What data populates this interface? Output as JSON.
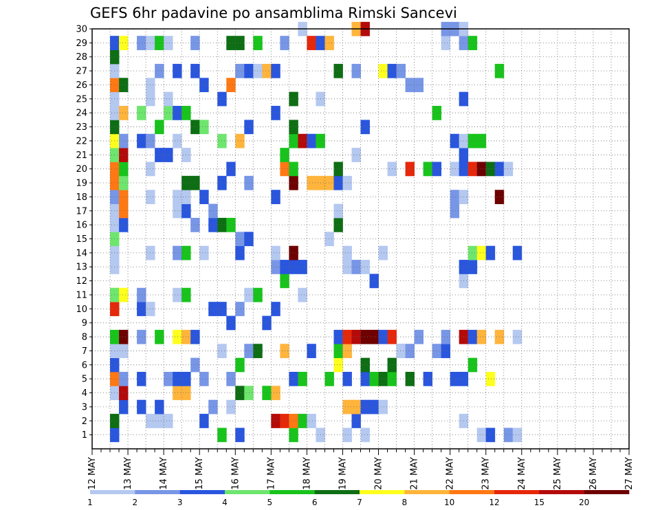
{
  "chart_data": {
    "type": "heatmap",
    "title": "GEFS 6hr padavine po ansamblima Rimski Sancevi",
    "xlabel": "",
    "ylabel": "",
    "x_start": "12 MAY",
    "x_end": "27 MAY",
    "x_step_hours": 6,
    "x_tick_labels": [
      "12 MAY",
      "13 MAY",
      "14 MAY",
      "15 MAY",
      "16 MAY",
      "17 MAY",
      "18 MAY",
      "19 MAY",
      "20 MAY",
      "21 MAY",
      "22 MAY",
      "23 MAY",
      "24 MAY",
      "25 MAY",
      "26 MAY",
      "27 MAY"
    ],
    "y_tick_labels": [
      "1",
      "2",
      "3",
      "4",
      "5",
      "6",
      "7",
      "8",
      "9",
      "10",
      "11",
      "12",
      "13",
      "14",
      "15",
      "16",
      "17",
      "18",
      "19",
      "20",
      "21",
      "22",
      "23",
      "24",
      "25",
      "26",
      "27",
      "28",
      "29",
      "30"
    ],
    "ylim": [
      0,
      30
    ],
    "grid": "dotted",
    "colorbar": {
      "tick_labels": [
        "1",
        "2",
        "3",
        "4",
        "5",
        "6",
        "7",
        "8",
        "10",
        "12",
        "15",
        "20"
      ],
      "colors": [
        "#b4c8f0",
        "#7896e6",
        "#2a56de",
        "#6ee66e",
        "#18c41c",
        "#0e6e14",
        "#ffff1e",
        "#ffb43c",
        "#ff7814",
        "#e6280a",
        "#b40a0a",
        "#6e0000"
      ]
    },
    "cells": [
      [
        12.5,
        1,
        3
      ],
      [
        12.5,
        2,
        6
      ],
      [
        12.5,
        4,
        1
      ],
      [
        12.5,
        5,
        9
      ],
      [
        12.5,
        6,
        3
      ],
      [
        12.5,
        7,
        1
      ],
      [
        12.5,
        8,
        5
      ],
      [
        12.5,
        10,
        4
      ],
      [
        12.5,
        10,
        10
      ],
      [
        12.5,
        11,
        7
      ],
      [
        12.5,
        11,
        4
      ],
      [
        12.5,
        13,
        1
      ],
      [
        12.5,
        14,
        1
      ],
      [
        12.5,
        15,
        4
      ],
      [
        12.5,
        16,
        1
      ],
      [
        12.5,
        17,
        1
      ],
      [
        12.5,
        18,
        2
      ],
      [
        12.5,
        19,
        9
      ],
      [
        12.5,
        20,
        9
      ],
      [
        12.5,
        21,
        4
      ],
      [
        12.5,
        22,
        7
      ],
      [
        12.5,
        23,
        6
      ],
      [
        12.5,
        24,
        1
      ],
      [
        12.5,
        25,
        1
      ],
      [
        12.5,
        26,
        9
      ],
      [
        12.5,
        27,
        1
      ],
      [
        12.5,
        28,
        6
      ],
      [
        12.5,
        29,
        3
      ],
      [
        12.75,
        3,
        3
      ],
      [
        12.75,
        4,
        11
      ],
      [
        12.75,
        5,
        2
      ],
      [
        12.75,
        7,
        1
      ],
      [
        12.75,
        8,
        12
      ],
      [
        12.75,
        11,
        7
      ],
      [
        12.75,
        16,
        3
      ],
      [
        12.75,
        17,
        9
      ],
      [
        12.75,
        18,
        9
      ],
      [
        12.75,
        19,
        4
      ],
      [
        12.75,
        20,
        5
      ],
      [
        12.75,
        21,
        11
      ],
      [
        12.75,
        22,
        2
      ],
      [
        12.75,
        24,
        8
      ],
      [
        12.75,
        26,
        6
      ],
      [
        12.75,
        29,
        7
      ],
      [
        13.25,
        5,
        3
      ],
      [
        13.25,
        8,
        2
      ],
      [
        13.25,
        10,
        3
      ],
      [
        13.25,
        11,
        2
      ],
      [
        13.25,
        24,
        4
      ],
      [
        13.25,
        22,
        3
      ],
      [
        13.25,
        29,
        2
      ],
      [
        13.25,
        3,
        3
      ],
      [
        13.5,
        2,
        1
      ],
      [
        13.5,
        10,
        1
      ],
      [
        13.5,
        14,
        1
      ],
      [
        13.5,
        18,
        1
      ],
      [
        13.5,
        20,
        1
      ],
      [
        13.5,
        22,
        2
      ],
      [
        13.5,
        25,
        1
      ],
      [
        13.5,
        26,
        1
      ],
      [
        13.5,
        29,
        1
      ],
      [
        13.75,
        2,
        1
      ],
      [
        13.75,
        3,
        3
      ],
      [
        13.75,
        8,
        5
      ],
      [
        13.75,
        23,
        5
      ],
      [
        13.75,
        27,
        2
      ],
      [
        13.75,
        29,
        5
      ],
      [
        13.75,
        21,
        3
      ],
      [
        14.0,
        2,
        1
      ],
      [
        14.0,
        5,
        2
      ],
      [
        14.0,
        21,
        3
      ],
      [
        14.0,
        24,
        4
      ],
      [
        14.0,
        25,
        1
      ],
      [
        14.0,
        29,
        1
      ],
      [
        14.25,
        4,
        8
      ],
      [
        14.25,
        5,
        3
      ],
      [
        14.25,
        8,
        7
      ],
      [
        14.25,
        11,
        1
      ],
      [
        14.25,
        14,
        2
      ],
      [
        14.25,
        17,
        1
      ],
      [
        14.25,
        18,
        1
      ],
      [
        14.25,
        22,
        1
      ],
      [
        14.25,
        24,
        3
      ],
      [
        14.25,
        27,
        3
      ],
      [
        14.5,
        4,
        8
      ],
      [
        14.5,
        5,
        3
      ],
      [
        14.5,
        8,
        8
      ],
      [
        14.5,
        11,
        5
      ],
      [
        14.5,
        14,
        5
      ],
      [
        14.5,
        17,
        3
      ],
      [
        14.5,
        18,
        1
      ],
      [
        14.5,
        19,
        6
      ],
      [
        14.5,
        21,
        1
      ],
      [
        14.5,
        24,
        5
      ],
      [
        14.75,
        6,
        2
      ],
      [
        14.75,
        8,
        3
      ],
      [
        14.75,
        16,
        2
      ],
      [
        14.75,
        19,
        6
      ],
      [
        14.75,
        23,
        6
      ],
      [
        14.75,
        27,
        3
      ],
      [
        14.75,
        29,
        2
      ],
      [
        15.0,
        2,
        3
      ],
      [
        15.0,
        5,
        2
      ],
      [
        15.0,
        14,
        1
      ],
      [
        15.0,
        18,
        3
      ],
      [
        15.0,
        23,
        4
      ],
      [
        15.0,
        26,
        3
      ],
      [
        15.25,
        3,
        2
      ],
      [
        15.25,
        10,
        3
      ],
      [
        15.25,
        16,
        3
      ],
      [
        15.25,
        17,
        2
      ],
      [
        15.5,
        1,
        5
      ],
      [
        15.5,
        7,
        1
      ],
      [
        15.5,
        10,
        3
      ],
      [
        15.5,
        16,
        6
      ],
      [
        15.5,
        19,
        3
      ],
      [
        15.5,
        22,
        4
      ],
      [
        15.5,
        25,
        3
      ],
      [
        15.75,
        3,
        1
      ],
      [
        15.75,
        5,
        2
      ],
      [
        15.75,
        9,
        3
      ],
      [
        15.75,
        16,
        5
      ],
      [
        15.75,
        20,
        3
      ],
      [
        15.75,
        26,
        9
      ],
      [
        15.75,
        29,
        6
      ],
      [
        16.0,
        1,
        3
      ],
      [
        16.0,
        4,
        6
      ],
      [
        16.0,
        6,
        5
      ],
      [
        16.0,
        10,
        2
      ],
      [
        16.0,
        14,
        3
      ],
      [
        16.0,
        15,
        2
      ],
      [
        16.0,
        22,
        8
      ],
      [
        16.0,
        27,
        2
      ],
      [
        16.0,
        29,
        6
      ],
      [
        16.25,
        4,
        4
      ],
      [
        16.25,
        7,
        2
      ],
      [
        16.25,
        11,
        1
      ],
      [
        16.25,
        15,
        3
      ],
      [
        16.25,
        19,
        2
      ],
      [
        16.25,
        23,
        3
      ],
      [
        16.25,
        27,
        3
      ],
      [
        16.5,
        7,
        6
      ],
      [
        16.5,
        11,
        5
      ],
      [
        16.5,
        27,
        1
      ],
      [
        16.5,
        29,
        5
      ],
      [
        16.75,
        4,
        5
      ],
      [
        16.75,
        9,
        3
      ],
      [
        16.75,
        27,
        8
      ],
      [
        17.0,
        2,
        11
      ],
      [
        17.0,
        4,
        8
      ],
      [
        17.0,
        10,
        3
      ],
      [
        17.0,
        13,
        2
      ],
      [
        17.0,
        14,
        1
      ],
      [
        17.0,
        18,
        3
      ],
      [
        17.0,
        24,
        3
      ],
      [
        17.0,
        27,
        3
      ],
      [
        17.25,
        2,
        10
      ],
      [
        17.25,
        7,
        8
      ],
      [
        17.25,
        12,
        5
      ],
      [
        17.25,
        13,
        3
      ],
      [
        17.25,
        20,
        9
      ],
      [
        17.25,
        21,
        5
      ],
      [
        17.25,
        29,
        2
      ],
      [
        17.5,
        1,
        5
      ],
      [
        17.5,
        2,
        9
      ],
      [
        17.5,
        5,
        3
      ],
      [
        17.5,
        13,
        3
      ],
      [
        17.5,
        14,
        12
      ],
      [
        17.5,
        19,
        12
      ],
      [
        17.5,
        20,
        5
      ],
      [
        17.5,
        22,
        5
      ],
      [
        17.5,
        23,
        6
      ],
      [
        17.5,
        25,
        6
      ],
      [
        17.75,
        2,
        5
      ],
      [
        17.75,
        5,
        5
      ],
      [
        17.75,
        11,
        1
      ],
      [
        17.75,
        13,
        3
      ],
      [
        17.75,
        22,
        11
      ],
      [
        17.75,
        30,
        1
      ],
      [
        18.0,
        2,
        1
      ],
      [
        18.0,
        7,
        3
      ],
      [
        18.0,
        19,
        8
      ],
      [
        18.0,
        22,
        3
      ],
      [
        18.0,
        29,
        10
      ],
      [
        18.25,
        1,
        1
      ],
      [
        18.25,
        19,
        8
      ],
      [
        18.25,
        22,
        5
      ],
      [
        18.25,
        25,
        1
      ],
      [
        18.25,
        29,
        3
      ],
      [
        18.5,
        5,
        5
      ],
      [
        18.5,
        15,
        1
      ],
      [
        18.5,
        19,
        8
      ],
      [
        18.5,
        29,
        8
      ],
      [
        18.75,
        6,
        7
      ],
      [
        18.75,
        7,
        5
      ],
      [
        18.75,
        8,
        3
      ],
      [
        18.75,
        16,
        6
      ],
      [
        18.75,
        17,
        1
      ],
      [
        18.75,
        19,
        3
      ],
      [
        18.75,
        20,
        6
      ],
      [
        18.75,
        27,
        6
      ],
      [
        19.0,
        1,
        1
      ],
      [
        19.0,
        3,
        8
      ],
      [
        19.0,
        5,
        3
      ],
      [
        19.0,
        7,
        8
      ],
      [
        19.0,
        8,
        10
      ],
      [
        19.0,
        13,
        1
      ],
      [
        19.0,
        14,
        1
      ],
      [
        19.0,
        19,
        1
      ],
      [
        19.25,
        2,
        3
      ],
      [
        19.25,
        3,
        8
      ],
      [
        19.25,
        8,
        11
      ],
      [
        19.25,
        13,
        2
      ],
      [
        19.25,
        21,
        1
      ],
      [
        19.25,
        27,
        2
      ],
      [
        19.25,
        30,
        8
      ],
      [
        19.5,
        1,
        1
      ],
      [
        19.5,
        3,
        3
      ],
      [
        19.5,
        5,
        3
      ],
      [
        19.5,
        6,
        6
      ],
      [
        19.5,
        8,
        12
      ],
      [
        19.5,
        13,
        1
      ],
      [
        19.5,
        23,
        3
      ],
      [
        19.5,
        30,
        11
      ],
      [
        19.75,
        3,
        3
      ],
      [
        19.75,
        5,
        5
      ],
      [
        19.75,
        8,
        12
      ],
      [
        19.75,
        12,
        3
      ],
      [
        20.0,
        3,
        1
      ],
      [
        20.0,
        5,
        6
      ],
      [
        20.0,
        8,
        3
      ],
      [
        20.0,
        14,
        1
      ],
      [
        20.0,
        27,
        7
      ],
      [
        20.25,
        5,
        5
      ],
      [
        20.25,
        6,
        6
      ],
      [
        20.25,
        8,
        10
      ],
      [
        20.25,
        20,
        1
      ],
      [
        20.25,
        27,
        3
      ],
      [
        20.5,
        7,
        2
      ],
      [
        20.5,
        7,
        1
      ],
      [
        20.5,
        27,
        2
      ],
      [
        20.75,
        5,
        6
      ],
      [
        20.75,
        7,
        2
      ],
      [
        20.75,
        20,
        10
      ],
      [
        20.75,
        26,
        2
      ],
      [
        21.0,
        8,
        2
      ],
      [
        21.0,
        26,
        2
      ],
      [
        21.25,
        5,
        3
      ],
      [
        21.25,
        20,
        5
      ],
      [
        21.5,
        7,
        2
      ],
      [
        21.5,
        20,
        3
      ],
      [
        21.5,
        24,
        5
      ],
      [
        21.75,
        7,
        3
      ],
      [
        21.75,
        8,
        2
      ],
      [
        21.75,
        29,
        1
      ],
      [
        21.75,
        30,
        2
      ],
      [
        22.0,
        5,
        3
      ],
      [
        22.0,
        17,
        2
      ],
      [
        22.0,
        18,
        2
      ],
      [
        22.0,
        20,
        1
      ],
      [
        22.0,
        22,
        3
      ],
      [
        22.0,
        30,
        2
      ],
      [
        22.25,
        2,
        1
      ],
      [
        22.25,
        5,
        3
      ],
      [
        22.25,
        8,
        11
      ],
      [
        22.25,
        12,
        1
      ],
      [
        22.25,
        13,
        3
      ],
      [
        22.25,
        18,
        1
      ],
      [
        22.25,
        20,
        3
      ],
      [
        22.25,
        21,
        3
      ],
      [
        22.25,
        22,
        1
      ],
      [
        22.25,
        25,
        3
      ],
      [
        22.25,
        29,
        2
      ],
      [
        22.25,
        30,
        1
      ],
      [
        22.5,
        6,
        5
      ],
      [
        22.5,
        8,
        3
      ],
      [
        22.5,
        13,
        3
      ],
      [
        22.5,
        14,
        4
      ],
      [
        22.5,
        20,
        10
      ],
      [
        22.5,
        22,
        5
      ],
      [
        22.5,
        29,
        5
      ],
      [
        22.75,
        1,
        1
      ],
      [
        22.75,
        8,
        8
      ],
      [
        22.75,
        14,
        7
      ],
      [
        22.75,
        20,
        12
      ],
      [
        22.75,
        22,
        5
      ],
      [
        23.0,
        1,
        3
      ],
      [
        23.0,
        5,
        7
      ],
      [
        23.0,
        20,
        6
      ],
      [
        23.0,
        14,
        3
      ],
      [
        23.25,
        20,
        3
      ],
      [
        23.25,
        18,
        12
      ],
      [
        23.25,
        27,
        5
      ],
      [
        23.25,
        8,
        8
      ],
      [
        23.5,
        1,
        2
      ],
      [
        23.5,
        20,
        1
      ],
      [
        23.75,
        1,
        1
      ],
      [
        23.75,
        14,
        3
      ],
      [
        23.75,
        8,
        1
      ]
    ]
  }
}
